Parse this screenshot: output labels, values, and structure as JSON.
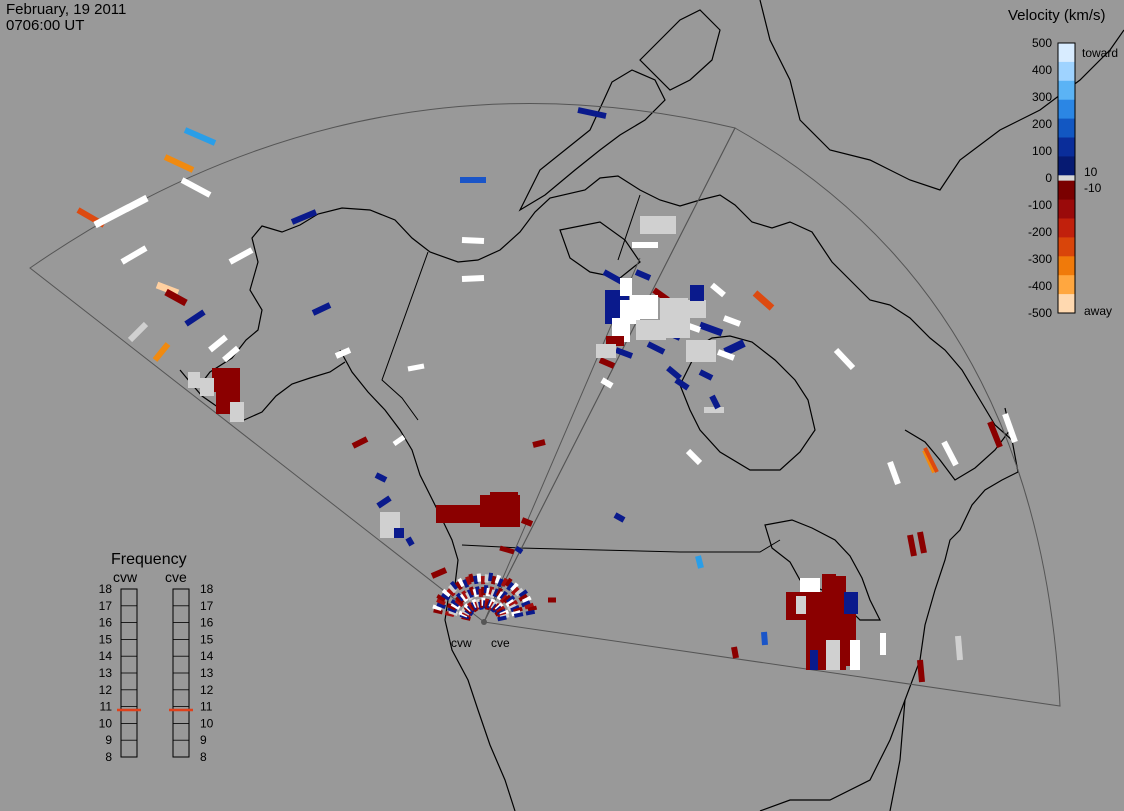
{
  "header": {
    "date": "February, 19 2011",
    "time": "0706:00 UT"
  },
  "velocity_scale": {
    "title": "Velocity (km/s)",
    "ticks": [
      "500",
      "400",
      "300",
      "200",
      "100",
      "0",
      "-100",
      "-200",
      "-300",
      "-400",
      "-500"
    ],
    "near_zero": [
      "10",
      "-10"
    ],
    "end_labels": {
      "toward": "toward",
      "away": "away"
    },
    "colors": {
      "toward": [
        "#d8ecff",
        "#9fd3ff",
        "#5bb3f5",
        "#2b86e4",
        "#1257c2",
        "#0a2d9a",
        "#061a72"
      ],
      "zero": "#d7d7d7",
      "away": [
        "#7a0000",
        "#9a0a0a",
        "#c1200c",
        "#d9450a",
        "#f07a0a",
        "#ffa740",
        "#ffd9b0"
      ]
    }
  },
  "frequency_panel": {
    "title": "Frequency",
    "radars": [
      "cvw",
      "cve"
    ],
    "levels": [
      "18",
      "17",
      "16",
      "15",
      "14",
      "13",
      "12",
      "11",
      "10",
      "9",
      "8"
    ],
    "current": [
      10.8,
      10.8
    ],
    "marker_color": "#e0401a"
  },
  "radar_sites": [
    "cvw",
    "cve"
  ],
  "map": {
    "fov_color": "#555555",
    "coast_color": "#000000",
    "colors": {
      "dark_red": "#8b0000",
      "red": "#a30e0e",
      "navy": "#0a1a8c",
      "blue": "#1a55c8",
      "light_blue": "#2a9ee8",
      "white": "#ffffff",
      "grey": "#d0d0d0",
      "orange": "#f08a10",
      "orange_red": "#dd4a10",
      "peach": "#ffd0a0"
    }
  }
}
